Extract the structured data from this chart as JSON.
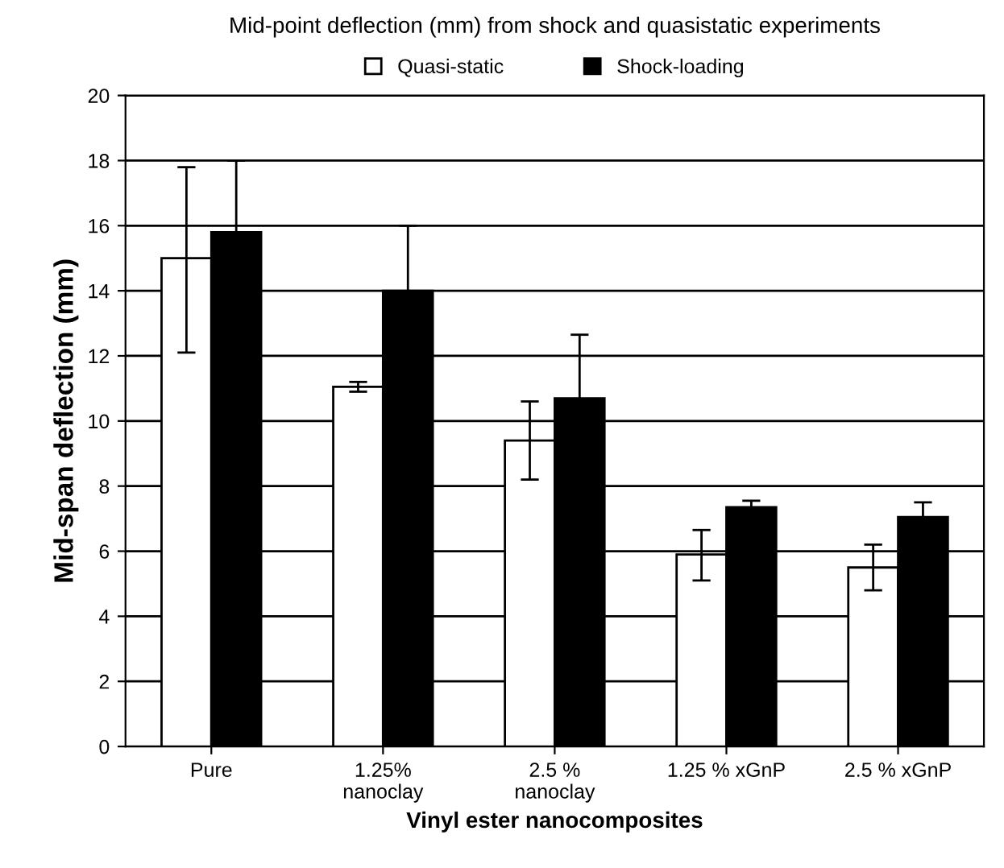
{
  "chart_data": {
    "type": "bar",
    "title": "Mid-point deflection (mm) from shock and quasistatic experiments",
    "xlabel": "Vinyl ester nanocomposites",
    "ylabel": "Mid-span deflection (mm)",
    "categories": [
      "Pure",
      "1.25%\nnanoclay",
      "2.5 %\nnanoclay",
      "1.25 % xGnP",
      "2.5 % xGnP"
    ],
    "series": [
      {
        "name": "Quasi-static",
        "color": "#ffffff",
        "values": [
          15.0,
          11.05,
          9.4,
          5.9,
          5.5
        ],
        "errors": [
          [
            12.1,
            17.8
          ],
          [
            10.9,
            11.2
          ],
          [
            8.2,
            10.6
          ],
          [
            5.1,
            6.65
          ],
          [
            4.8,
            6.2
          ]
        ]
      },
      {
        "name": "Shock-loading",
        "color": "#000000",
        "values": [
          15.8,
          14.0,
          10.7,
          7.35,
          7.05
        ],
        "errors": [
          2.2,
          2.0,
          1.95,
          0.2,
          0.45
        ]
      }
    ],
    "ylim": [
      0,
      20
    ],
    "yticks": [
      0,
      2,
      4,
      6,
      8,
      10,
      12,
      14,
      16,
      18,
      20
    ],
    "grid": "y",
    "legend": "top"
  }
}
